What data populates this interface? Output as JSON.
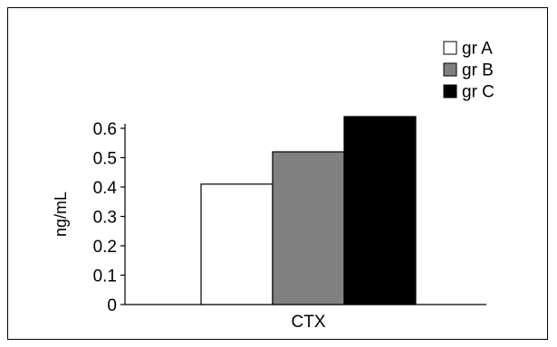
{
  "chart_data": {
    "type": "bar",
    "categories": [
      "CTX"
    ],
    "series": [
      {
        "name": "gr A",
        "values": [
          0.41
        ],
        "color": "#ffffff"
      },
      {
        "name": "gr B",
        "values": [
          0.52
        ],
        "color": "#808080"
      },
      {
        "name": "gr C",
        "values": [
          0.64
        ],
        "color": "#000000"
      }
    ],
    "ylabel": "ng/mL",
    "xlabel": "",
    "ylim": [
      0,
      0.6
    ],
    "yticks": [
      "0",
      "0.1",
      "0.2",
      "0.3",
      "0.4",
      "0.5",
      "0.6"
    ],
    "grid": false,
    "legend_position": "top-right"
  }
}
